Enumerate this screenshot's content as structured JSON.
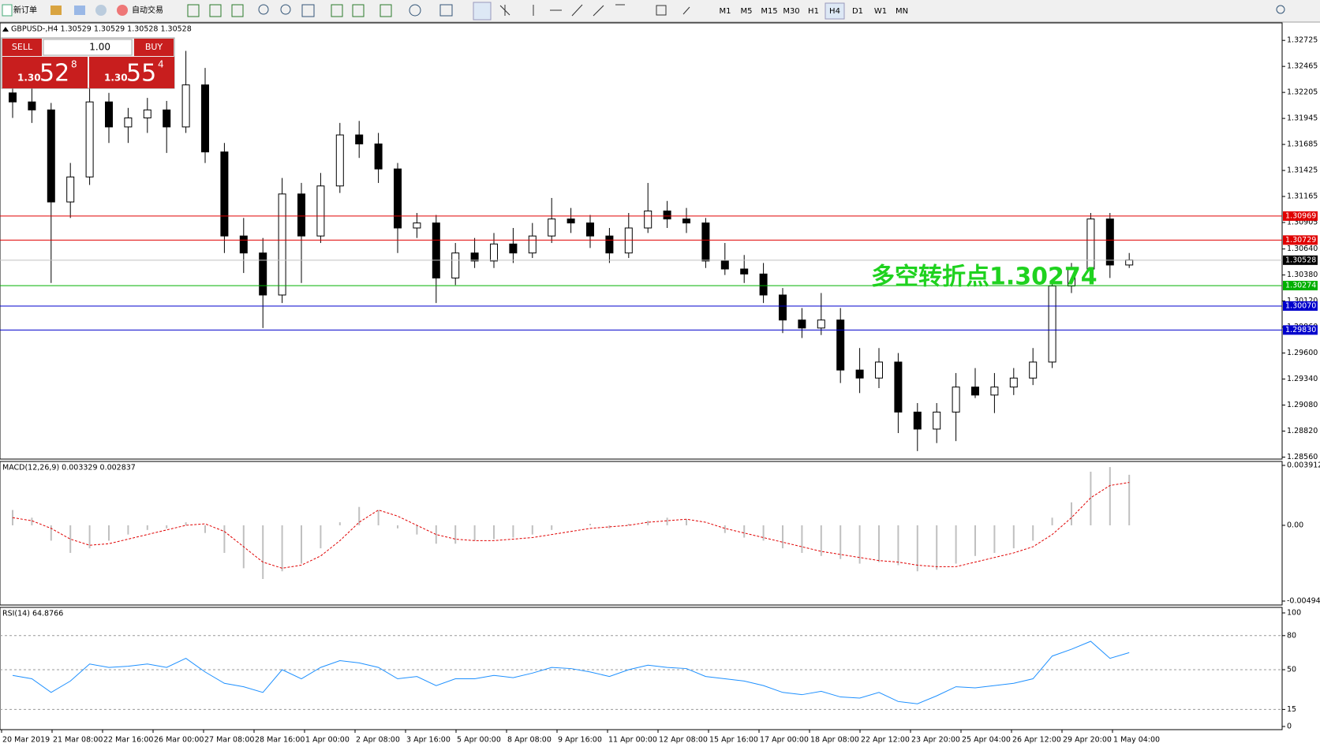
{
  "toolbar": {
    "new_order": "新订单",
    "auto_trade": "自动交易",
    "timeframes": [
      "M1",
      "M5",
      "M15",
      "M30",
      "H1",
      "H4",
      "D1",
      "W1",
      "MN"
    ],
    "active_timeframe": "H4"
  },
  "trade_panel": {
    "sell": "SELL",
    "buy": "BUY",
    "lot": "1.00",
    "sell_price": {
      "big_figure": "1.30",
      "pips": "52",
      "fraction": "8"
    },
    "buy_price": {
      "big_figure": "1.30",
      "pips": "55",
      "fraction": "4"
    }
  },
  "chart_data": [
    {
      "type": "candlestick",
      "title": "GBPUSD-,H4  1.30529 1.30529 1.30528 1.30528",
      "annotation": "多空转折点1.30274",
      "ylim": [
        1.2854,
        1.329
      ],
      "yticks": [
        1.32725,
        1.32465,
        1.32205,
        1.31945,
        1.31685,
        1.31425,
        1.31165,
        1.30905,
        {
          "value": 1.3064,
          "label": "1.30640"
        },
        {
          "value": 1.3038,
          "label": "1.30380"
        },
        {
          "value": 1.3012,
          "label": "1.30120"
        },
        {
          "value": 1.2986,
          "label": "1.29860"
        },
        {
          "value": 1.296,
          "label": "1.29600"
        },
        {
          "value": 1.2934,
          "label": "1.29340"
        },
        {
          "value": 1.2908,
          "label": "1.29080"
        },
        {
          "value": 1.2882,
          "label": "1.28820"
        },
        {
          "value": 1.2856,
          "label": "1.28560"
        }
      ],
      "levels": [
        {
          "value": 1.30969,
          "color": "#e00000"
        },
        {
          "value": 1.30729,
          "color": "#e00000"
        },
        {
          "value": 1.30528,
          "color": "#000000"
        },
        {
          "value": 1.30274,
          "color": "#00b000"
        },
        {
          "value": 1.3007,
          "label": "1.30070",
          "color": "#0000cc"
        },
        {
          "value": 1.2983,
          "label": "1.29830",
          "color": "#0000cc"
        }
      ],
      "time_labels": [
        "20 Mar 2019",
        "21 Mar 08:00",
        "22 Mar 16:00",
        "26 Mar 00:00",
        "27 Mar 08:00",
        "28 Mar 16:00",
        "1 Apr 00:00",
        "2 Apr 08:00",
        "3 Apr 16:00",
        "5 Apr 00:00",
        "8 Apr 08:00",
        "9 Apr 16:00",
        "11 Apr 00:00",
        "12 Apr 08:00",
        "15 Apr 16:00",
        "17 Apr 00:00",
        "18 Apr 08:00",
        "22 Apr 12:00",
        "23 Apr 20:00",
        "25 Apr 04:00",
        "26 Apr 12:00",
        "29 Apr 20:00",
        "1 May 04:00"
      ],
      "candles": [
        [
          1.322,
          1.3232,
          1.3195,
          1.3211
        ],
        [
          1.3211,
          1.3225,
          1.319,
          1.3203
        ],
        [
          1.3203,
          1.321,
          1.303,
          1.3111
        ],
        [
          1.3111,
          1.315,
          1.3095,
          1.3136
        ],
        [
          1.3136,
          1.3225,
          1.3128,
          1.3211
        ],
        [
          1.3211,
          1.322,
          1.317,
          1.3186
        ],
        [
          1.3186,
          1.3205,
          1.317,
          1.3195
        ],
        [
          1.3195,
          1.3215,
          1.318,
          1.3203
        ],
        [
          1.3203,
          1.3212,
          1.316,
          1.3186
        ],
        [
          1.3186,
          1.3262,
          1.318,
          1.3228
        ],
        [
          1.3228,
          1.3245,
          1.315,
          1.3161
        ],
        [
          1.3161,
          1.317,
          1.306,
          1.3077
        ],
        [
          1.3077,
          1.3095,
          1.304,
          1.306
        ],
        [
          1.306,
          1.3075,
          1.2985,
          1.3018
        ],
        [
          1.3018,
          1.3135,
          1.301,
          1.3119
        ],
        [
          1.3119,
          1.313,
          1.303,
          1.3077
        ],
        [
          1.3077,
          1.314,
          1.307,
          1.3127
        ],
        [
          1.3127,
          1.319,
          1.312,
          1.3178
        ],
        [
          1.3178,
          1.3192,
          1.3155,
          1.3169
        ],
        [
          1.3169,
          1.318,
          1.313,
          1.3144
        ],
        [
          1.3144,
          1.315,
          1.306,
          1.3085
        ],
        [
          1.3085,
          1.31,
          1.3075,
          1.309
        ],
        [
          1.309,
          1.3098,
          1.301,
          1.3035
        ],
        [
          1.3035,
          1.307,
          1.3028,
          1.306
        ],
        [
          1.306,
          1.3075,
          1.3045,
          1.3052
        ],
        [
          1.3052,
          1.308,
          1.3045,
          1.3069
        ],
        [
          1.3069,
          1.3085,
          1.305,
          1.306
        ],
        [
          1.306,
          1.309,
          1.3055,
          1.3077
        ],
        [
          1.3077,
          1.3115,
          1.307,
          1.3094
        ],
        [
          1.3094,
          1.3105,
          1.308,
          1.309
        ],
        [
          1.309,
          1.3098,
          1.3065,
          1.3077
        ],
        [
          1.3077,
          1.3085,
          1.305,
          1.306
        ],
        [
          1.306,
          1.31,
          1.3055,
          1.3085
        ],
        [
          1.3085,
          1.313,
          1.308,
          1.3102
        ],
        [
          1.3102,
          1.3112,
          1.3085,
          1.3094
        ],
        [
          1.3094,
          1.3105,
          1.308,
          1.309
        ],
        [
          1.309,
          1.3095,
          1.3045,
          1.3052
        ],
        [
          1.3052,
          1.307,
          1.3038,
          1.3044
        ],
        [
          1.3044,
          1.3058,
          1.303,
          1.3039
        ],
        [
          1.3039,
          1.305,
          1.301,
          1.3018
        ],
        [
          1.3018,
          1.3025,
          1.298,
          1.2993
        ],
        [
          1.2993,
          1.3005,
          1.2975,
          1.2985
        ],
        [
          1.2985,
          1.302,
          1.2978,
          1.2993
        ],
        [
          1.2993,
          1.3005,
          1.293,
          1.2943
        ],
        [
          1.2943,
          1.2965,
          1.292,
          1.2935
        ],
        [
          1.2935,
          1.2965,
          1.2925,
          1.2951
        ],
        [
          1.2951,
          1.296,
          1.288,
          1.2901
        ],
        [
          1.2901,
          1.291,
          1.2862,
          1.2884
        ],
        [
          1.2884,
          1.291,
          1.287,
          1.2901
        ],
        [
          1.2901,
          1.294,
          1.2872,
          1.2926
        ],
        [
          1.2926,
          1.2945,
          1.2915,
          1.2918
        ],
        [
          1.2918,
          1.294,
          1.29,
          1.2926
        ],
        [
          1.2926,
          1.2945,
          1.2918,
          1.2935
        ],
        [
          1.2935,
          1.2965,
          1.2928,
          1.2951
        ],
        [
          1.2951,
          1.303,
          1.2945,
          1.3027
        ],
        [
          1.3027,
          1.305,
          1.302,
          1.3044
        ],
        [
          1.3044,
          1.31,
          1.304,
          1.3094
        ],
        [
          1.3094,
          1.31,
          1.3035,
          1.3048
        ],
        [
          1.3048,
          1.306,
          1.3045,
          1.3053
        ]
      ]
    },
    {
      "type": "macd",
      "title": "MACD(12,26,9) 0.003329 0.002837",
      "ylim": [
        -0.004944,
        0.003912
      ],
      "yticks": [
        0.003912,
        {
          "value": 0,
          "label": "0.00"
        },
        -0.004944
      ],
      "series": [
        {
          "name": "MACD",
          "color": "#c0c0c0",
          "values": [
            0.001,
            0.0005,
            -0.001,
            -0.0018,
            -0.0015,
            -0.001,
            -0.0006,
            -0.0003,
            -0.0002,
            0.0002,
            -0.0005,
            -0.0018,
            -0.0028,
            -0.0035,
            -0.003,
            -0.0025,
            -0.0015,
            0.0002,
            0.0012,
            0.001,
            -0.0002,
            -0.0006,
            -0.0012,
            -0.0012,
            -0.001,
            -0.0009,
            -0.0008,
            -0.0006,
            -0.0003,
            0,
            0.0001,
            -0.0002,
            0.0001,
            0.0003,
            0.0005,
            0.0004,
            0,
            -0.0005,
            -0.0008,
            -0.001,
            -0.0015,
            -0.0018,
            -0.002,
            -0.0022,
            -0.0025,
            -0.0024,
            -0.0026,
            -0.003,
            -0.0029,
            -0.0025,
            -0.002,
            -0.0018,
            -0.0015,
            -0.001,
            0.0005,
            0.0015,
            0.0035,
            0.0038,
            0.0033
          ]
        },
        {
          "name": "Signal",
          "color": "#e00000",
          "values": [
            0.0005,
            0.0003,
            -0.0002,
            -0.0009,
            -0.0013,
            -0.0012,
            -0.0009,
            -0.0006,
            -0.0003,
            0,
            0.0001,
            -0.0004,
            -0.0014,
            -0.0024,
            -0.0028,
            -0.0026,
            -0.002,
            -0.001,
            0.0002,
            0.001,
            0.0006,
            0,
            -0.0006,
            -0.0009,
            -0.001,
            -0.001,
            -0.0009,
            -0.0008,
            -0.0006,
            -0.0004,
            -0.0002,
            -0.0001,
            0,
            0.0002,
            0.0003,
            0.0004,
            0.0002,
            -0.0002,
            -0.0005,
            -0.0008,
            -0.0011,
            -0.0014,
            -0.0017,
            -0.0019,
            -0.0021,
            -0.0023,
            -0.0024,
            -0.0026,
            -0.0027,
            -0.0027,
            -0.0024,
            -0.0021,
            -0.0018,
            -0.0014,
            -0.0006,
            0.0005,
            0.0018,
            0.0026,
            0.0028
          ]
        }
      ]
    },
    {
      "type": "line",
      "title": "RSI(14) 64.8766",
      "color": "#1e90ff",
      "ylim": [
        0,
        100
      ],
      "yticks": [
        100,
        80,
        50,
        15,
        0
      ],
      "levels": [
        80,
        50,
        15
      ],
      "values": [
        45,
        42,
        30,
        40,
        55,
        52,
        53,
        55,
        52,
        60,
        48,
        38,
        35,
        30,
        50,
        42,
        52,
        58,
        56,
        52,
        42,
        44,
        36,
        42,
        42,
        45,
        43,
        47,
        52,
        51,
        48,
        44,
        50,
        54,
        52,
        51,
        44,
        42,
        40,
        36,
        30,
        28,
        31,
        26,
        25,
        30,
        22,
        20,
        27,
        35,
        34,
        36,
        38,
        42,
        62,
        68,
        75,
        60,
        65
      ]
    }
  ]
}
